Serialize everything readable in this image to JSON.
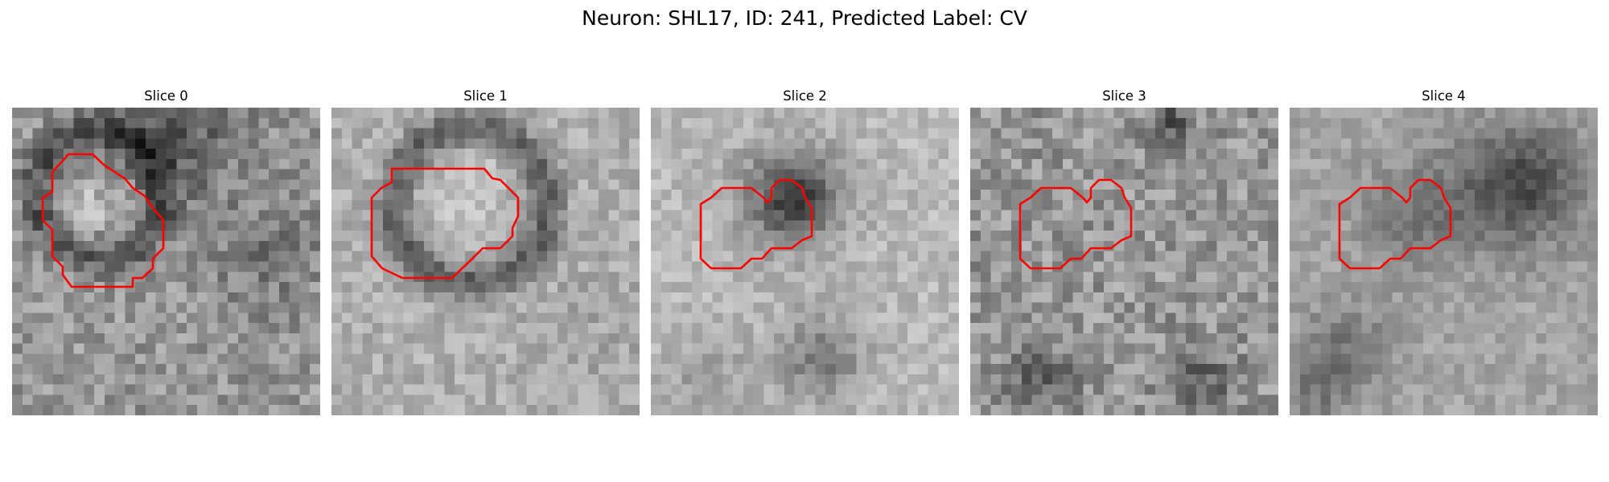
{
  "figure": {
    "title": "Neuron: SHL17, ID: 241, Predicted Label: CV"
  },
  "roi_color": "#ff0000",
  "colormap": "grayscale",
  "panels": [
    {
      "title": "Slice 0"
    },
    {
      "title": "Slice 1"
    },
    {
      "title": "Slice 2"
    },
    {
      "title": "Slice 3"
    },
    {
      "title": "Slice 4"
    }
  ]
}
